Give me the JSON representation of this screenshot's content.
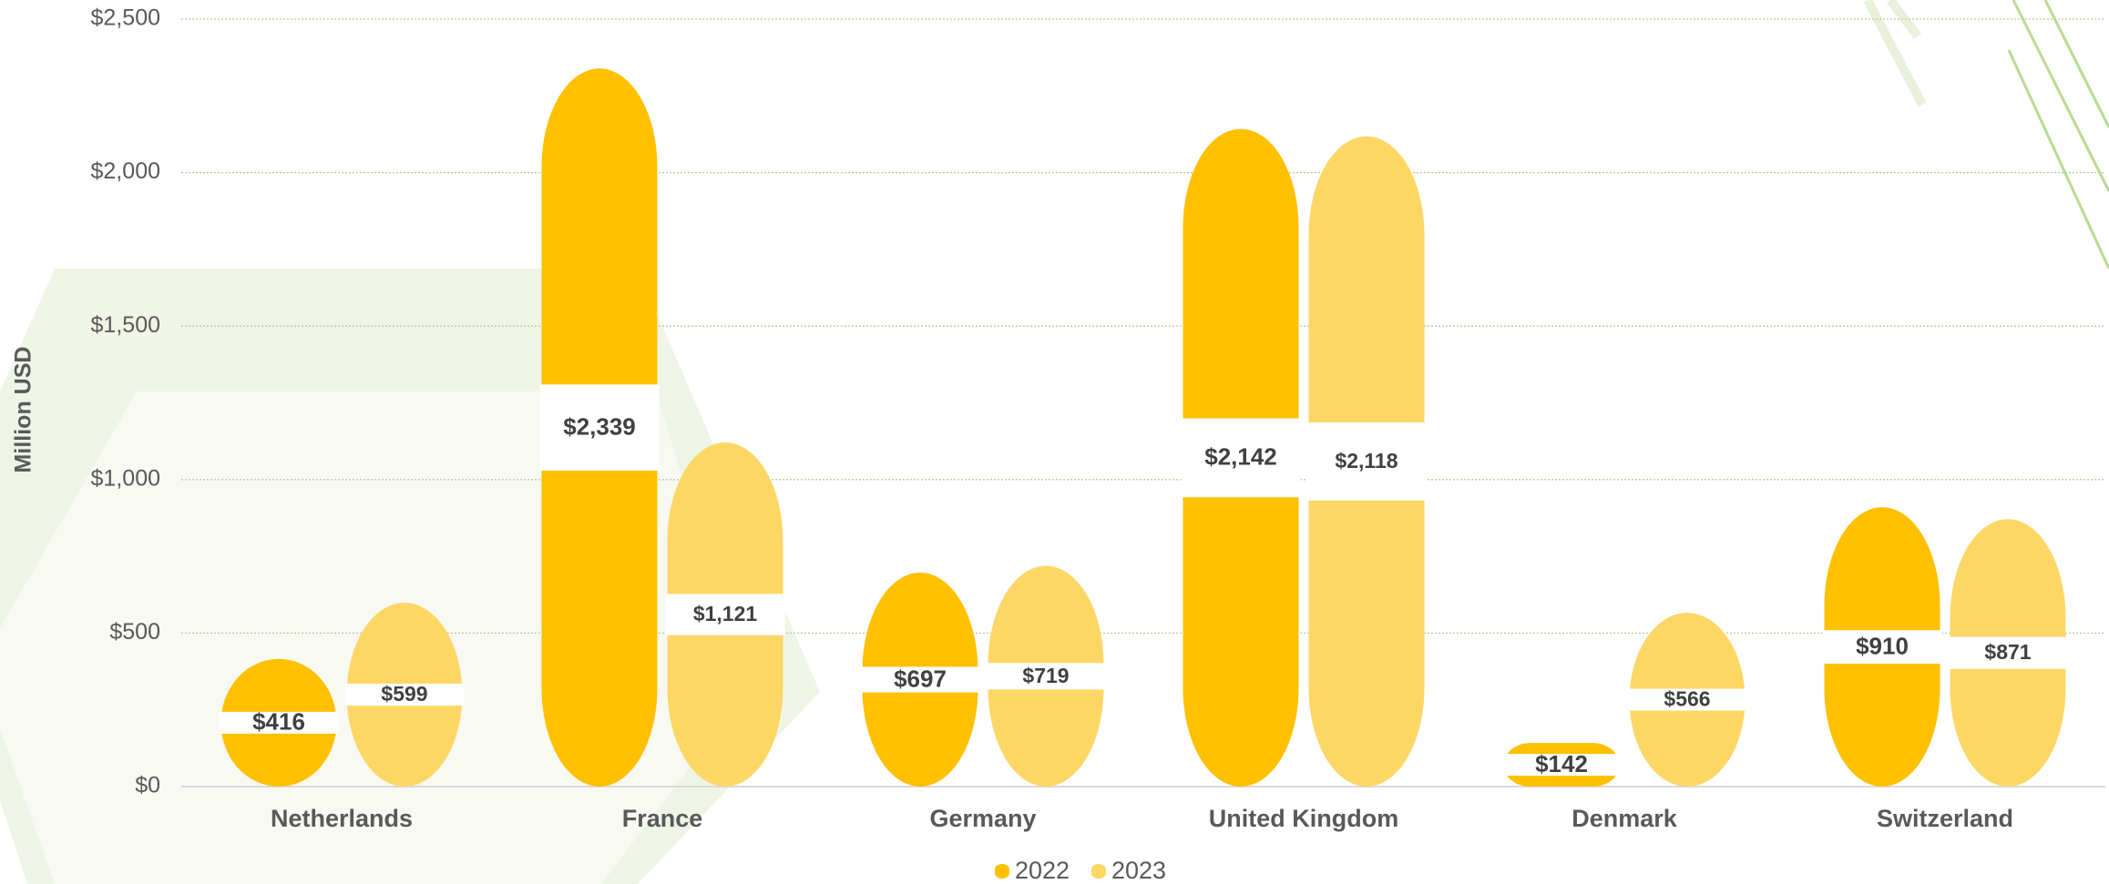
{
  "chart_data": {
    "type": "bar",
    "y_label": "Million USD",
    "categories": [
      "Netherlands",
      "France",
      "Germany",
      "United Kingdom",
      "Denmark",
      "Switzerland"
    ],
    "series": [
      {
        "name": "2022",
        "color": "#ffc000",
        "values": [
          416,
          2339,
          697,
          2142,
          142,
          910
        ],
        "value_labels": [
          "$416",
          "$2,339",
          "$697",
          "$2,142",
          "$142",
          "$910"
        ]
      },
      {
        "name": "2023",
        "color": "#fdd766",
        "values": [
          599,
          1121,
          719,
          2118,
          566,
          871
        ],
        "value_labels": [
          "$599",
          "$1,121",
          "$719",
          "$2,118",
          "$566",
          "$871"
        ]
      }
    ],
    "ylim": [
      0,
      2500
    ],
    "yticks": [
      {
        "value": 0,
        "label": "$0"
      },
      {
        "value": 500,
        "label": "$500"
      },
      {
        "value": 1000,
        "label": "$1,000"
      },
      {
        "value": 1500,
        "label": "$1,500"
      },
      {
        "value": 2000,
        "label": "$2,000"
      },
      {
        "value": 2500,
        "label": "$2,500"
      }
    ],
    "grid": true
  }
}
